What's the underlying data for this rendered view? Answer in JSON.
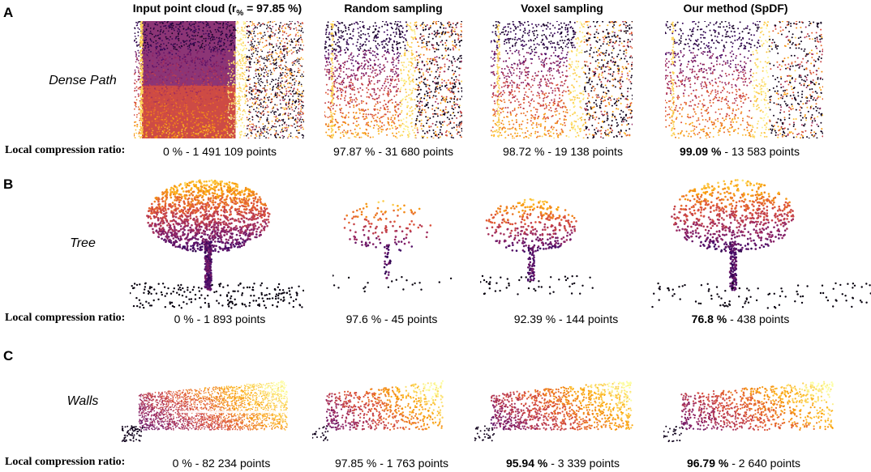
{
  "columns": [
    {
      "title": "Input point cloud (r",
      "sub": "%",
      "title_rest": " = 97.85 %)"
    },
    {
      "title": "Random sampling"
    },
    {
      "title": "Voxel sampling"
    },
    {
      "title": "Our method (SpDF)"
    }
  ],
  "compression_label": "Local compression ratio:",
  "panels": [
    {
      "letter": "A",
      "name": "Dense Path",
      "ratios": [
        {
          "pct": "0 %",
          "points": " - 1 491 109 points",
          "bold": false
        },
        {
          "pct": "97.87 %",
          "points": " - 31 680 points",
          "bold": false
        },
        {
          "pct": "98.72 %",
          "points": " - 19 138 points",
          "bold": false
        },
        {
          "pct": "99.09 %",
          "points": " - 13 583 points",
          "bold": true
        }
      ]
    },
    {
      "letter": "B",
      "name": "Tree",
      "ratios": [
        {
          "pct": "0 %",
          "points": " - 1 893 points",
          "bold": false
        },
        {
          "pct": "97.6 %",
          "points": " - 45 points",
          "bold": false
        },
        {
          "pct": "92.39 %",
          "points": " - 144 points",
          "bold": false
        },
        {
          "pct": "76.8 %",
          "points": " - 438 points",
          "bold": true
        }
      ]
    },
    {
      "letter": "C",
      "name": "Walls",
      "ratios": [
        {
          "pct": "0 %",
          "points": " - 82 234 points",
          "bold": false
        },
        {
          "pct": "97.85 %",
          "points": " - 1 763 points",
          "bold": false
        },
        {
          "pct": "95.94 %",
          "points": " - 3 339 points",
          "bold": true
        },
        {
          "pct": "96.79 %",
          "points": " - 2 640 points",
          "bold": true
        }
      ]
    }
  ],
  "colormap": [
    "#000004",
    "#420a68",
    "#932667",
    "#dd513a",
    "#fca50a",
    "#fcffa4"
  ]
}
